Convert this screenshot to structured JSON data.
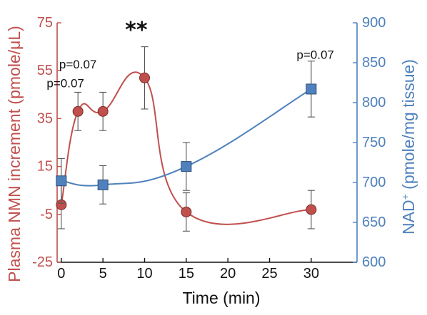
{
  "chart_data": {
    "type": "line",
    "xlabel": "Time (min)",
    "ylabel_left": "Plasma NMN increment (pmole/μL)",
    "ylabel_right_main": "NAD",
    "ylabel_right_sup": "+",
    "ylabel_right_rest": " (pmole/mg tissue)",
    "x_ticks": [
      0,
      5,
      10,
      15,
      20,
      25,
      30
    ],
    "x_tick_labels": [
      "0",
      "5",
      "10",
      "15",
      "20",
      "25",
      "30"
    ],
    "xlim": [
      -0.5,
      35.5
    ],
    "y_left_ticks": [
      75,
      55,
      35,
      15,
      -5,
      -25
    ],
    "y_left_tick_labels": [
      "75",
      "55",
      "35",
      "15",
      "-5",
      "-25"
    ],
    "ylim_left": [
      -25,
      75
    ],
    "y_right_ticks": [
      900,
      850,
      800,
      750,
      700,
      650,
      600
    ],
    "y_right_tick_labels": [
      "900",
      "850",
      "800",
      "750",
      "700",
      "650",
      "600"
    ],
    "ylim_right": [
      600,
      900
    ],
    "colors": {
      "nmn": "#c0504d",
      "nad": "#4f81bd",
      "axis_left": "#c0504d",
      "axis_right": "#4f81bd",
      "axis_bottom": "#111111"
    },
    "series": [
      {
        "axis": "left",
        "marker": "circle",
        "x": [
          0,
          2,
          5,
          10,
          15,
          30
        ],
        "y": [
          -1,
          38,
          38,
          52,
          -4,
          -3
        ],
        "err": [
          10,
          8,
          8,
          13,
          8,
          8
        ]
      },
      {
        "axis": "right",
        "marker": "square",
        "x": [
          0,
          5,
          15,
          30
        ],
        "y": [
          702,
          697,
          720,
          817
        ],
        "err": [
          28,
          24,
          30,
          35
        ]
      }
    ],
    "annotations": [
      {
        "text": "p=0.07",
        "x": 2,
        "axis": "left",
        "y": 56
      },
      {
        "text": "p=0.07",
        "x": 0.5,
        "axis": "left",
        "y": 48
      },
      {
        "text": "**",
        "x": 9,
        "axis": "left",
        "y": 69,
        "style": "sig"
      },
      {
        "text": "p=0.07",
        "x": 30.5,
        "axis": "right",
        "y": 855
      }
    ]
  }
}
